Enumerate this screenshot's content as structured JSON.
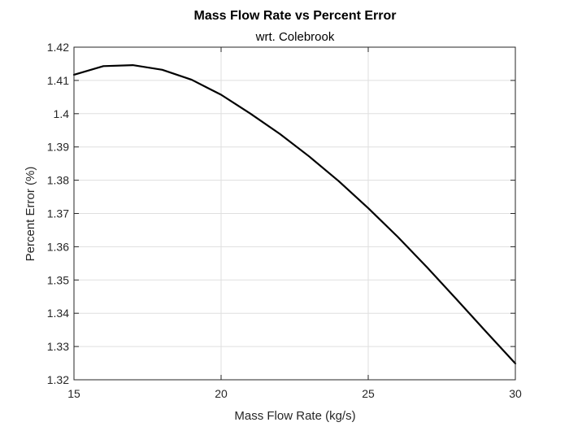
{
  "chart_data": {
    "type": "line",
    "title": "Mass Flow Rate vs Percent Error",
    "subtitle": "wrt. Colebrook",
    "xlabel": "Mass Flow Rate (kg/s)",
    "ylabel": "Percent Error (%)",
    "xlim": [
      15,
      30
    ],
    "ylim": [
      1.32,
      1.42
    ],
    "x_ticks": [
      "15",
      "20",
      "25",
      "30"
    ],
    "y_ticks": [
      "1.32",
      "1.33",
      "1.34",
      "1.35",
      "1.36",
      "1.37",
      "1.38",
      "1.39",
      "1.4",
      "1.41",
      "1.42"
    ],
    "grid": true,
    "series": [
      {
        "color": "#000000",
        "x": [
          15,
          16,
          17,
          18,
          19,
          20,
          21,
          22,
          23,
          24,
          25,
          26,
          27,
          28,
          29,
          30
        ],
        "values": [
          1.4117,
          1.4143,
          1.4146,
          1.4132,
          1.4102,
          1.4057,
          1.4,
          1.3939,
          1.3871,
          1.3797,
          1.3716,
          1.363,
          1.3538,
          1.3442,
          1.3345,
          1.3249
        ]
      }
    ]
  }
}
